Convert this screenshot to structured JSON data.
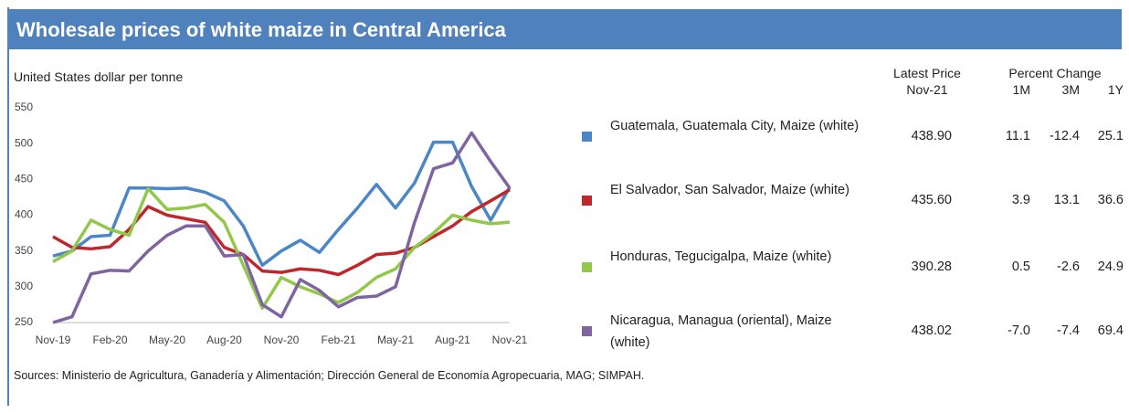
{
  "chart_data": {
    "type": "line",
    "title": "Wholesale prices of white maize in Central America",
    "y_label": "United States dollar per tonne",
    "categories": [
      "Nov-19",
      null,
      null,
      "Feb-20",
      null,
      null,
      "May-20",
      null,
      null,
      "Aug-20",
      null,
      null,
      "Nov-20",
      null,
      null,
      "Feb-21",
      null,
      null,
      "May-21",
      null,
      null,
      "Aug-21",
      null,
      null,
      "Nov-21"
    ],
    "ylim": [
      250,
      550
    ],
    "yticks": [
      250,
      300,
      350,
      400,
      450,
      500,
      550
    ],
    "grid": false,
    "series": [
      {
        "name": "Guatemala, Guatemala City, Maize (white)",
        "color": "#4a86c8",
        "values": [
          343,
          350,
          370,
          372,
          438,
          438,
          437,
          438,
          432,
          420,
          385,
          330,
          350,
          365,
          348,
          380,
          410,
          443,
          410,
          445,
          502,
          502,
          440,
          393,
          438.9
        ]
      },
      {
        "name": "El Salvador, San Salvador, Maize (white)",
        "color": "#c0272d",
        "values": [
          370,
          355,
          353,
          356,
          380,
          412,
          400,
          395,
          390,
          355,
          345,
          322,
          320,
          325,
          323,
          317,
          330,
          345,
          347,
          355,
          370,
          385,
          405,
          420,
          435.6
        ]
      },
      {
        "name": "Honduras, Tegucigalpa, Maize (white)",
        "color": "#92c84a",
        "values": [
          335,
          350,
          393,
          380,
          372,
          437,
          408,
          410,
          415,
          390,
          330,
          270,
          313,
          300,
          290,
          278,
          292,
          313,
          325,
          355,
          375,
          400,
          393,
          388,
          390.28
        ]
      },
      {
        "name": "Nicaragua, Managua (oriental), Maize (white)",
        "color": "#8064a2",
        "values": [
          250,
          258,
          318,
          323,
          322,
          350,
          372,
          385,
          385,
          343,
          345,
          275,
          258,
          310,
          295,
          272,
          285,
          287,
          300,
          390,
          465,
          473,
          515,
          475,
          438.02
        ]
      }
    ]
  },
  "table": {
    "header": {
      "price": [
        "Latest Price",
        "Nov-21"
      ],
      "change": "Percent Change",
      "periods": [
        "1M",
        "3M",
        "1Y"
      ]
    },
    "rows": [
      {
        "price": "438.90",
        "changes": [
          "11.1",
          "-12.4",
          "25.1"
        ]
      },
      {
        "price": "435.60",
        "changes": [
          "3.9",
          "13.1",
          "36.6"
        ]
      },
      {
        "price": "390.28",
        "changes": [
          "0.5",
          "-2.6",
          "24.9"
        ]
      },
      {
        "price": "438.02",
        "changes": [
          "-7.0",
          "-7.4",
          "69.4"
        ]
      }
    ]
  },
  "source": "Sources: Ministerio de Agricultura, Ganadería y Alimentación; Dirección General de Economía Agropecuaria, MAG; SIMPAH."
}
